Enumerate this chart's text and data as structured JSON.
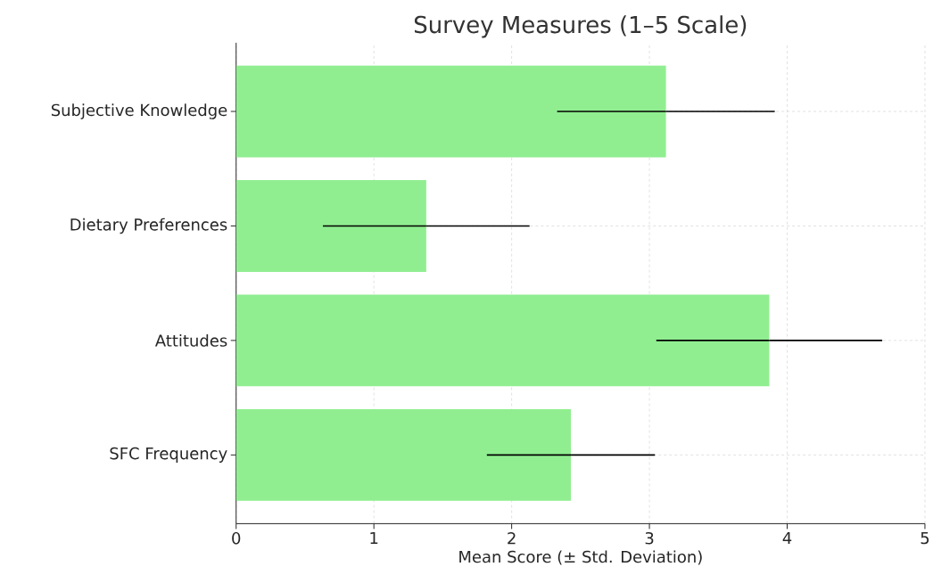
{
  "chart_data": {
    "type": "bar",
    "orientation": "horizontal",
    "title": "Survey Measures (1–5 Scale)",
    "xlabel": "Mean Score (± Std. Deviation)",
    "categories": [
      "Subjective Knowledge",
      "Dietary Preferences",
      "Attitudes",
      "SFC Frequency"
    ],
    "values": [
      3.12,
      1.38,
      3.87,
      2.43
    ],
    "errors": [
      0.79,
      0.75,
      0.82,
      0.61
    ],
    "color": "#90ee90",
    "xlim": [
      0,
      5
    ],
    "xticks": [
      0,
      1,
      2,
      3,
      4,
      5
    ],
    "grid": true
  }
}
